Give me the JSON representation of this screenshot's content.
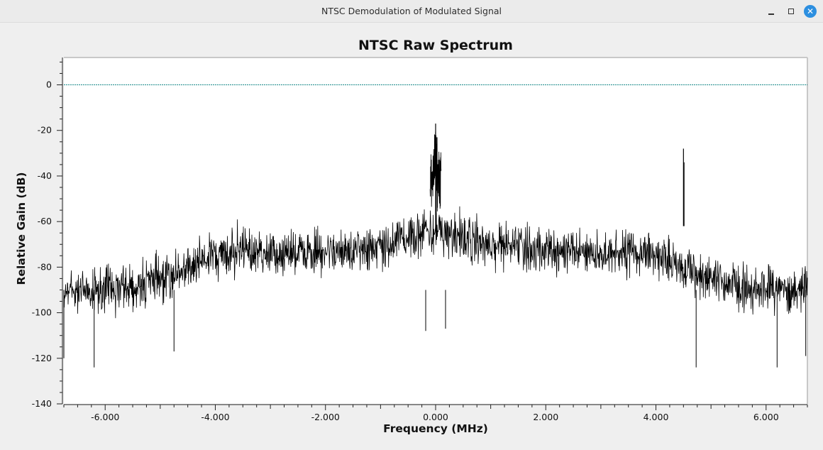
{
  "window": {
    "title": "NTSC Demodulation of Modulated Signal",
    "controls": {
      "minimize_icon": "minimize-icon",
      "maximize_icon": "maximize-icon",
      "close_icon": "close-icon",
      "close_glyph": "✕"
    }
  },
  "colors": {
    "trace": "#000000",
    "reference_line": "#1a8a8a",
    "plot_background": "#ffffff",
    "window_background": "#efefef",
    "close_button": "#2c8fe0"
  },
  "chart_data": {
    "type": "line",
    "title": "NTSC Raw Spectrum",
    "xlabel": "Frequency (MHz)",
    "ylabel": "Relative Gain (dB)",
    "xlim": [
      -6.75,
      6.75
    ],
    "ylim": [
      -140,
      12
    ],
    "x_ticks": [
      {
        "value": -6,
        "label": "-6.000"
      },
      {
        "value": -4,
        "label": "-4.000"
      },
      {
        "value": -2,
        "label": "-2.000"
      },
      {
        "value": 0,
        "label": "0.000"
      },
      {
        "value": 2,
        "label": "2.000"
      },
      {
        "value": 4,
        "label": "4.000"
      },
      {
        "value": 6,
        "label": "6.000"
      }
    ],
    "y_ticks": [
      {
        "value": 0,
        "label": "0"
      },
      {
        "value": -20,
        "label": "-20"
      },
      {
        "value": -40,
        "label": "-40"
      },
      {
        "value": -60,
        "label": "-60"
      },
      {
        "value": -80,
        "label": "-80"
      },
      {
        "value": -100,
        "label": "-100"
      },
      {
        "value": -120,
        "label": "-120"
      },
      {
        "value": -140,
        "label": "-140"
      }
    ],
    "reference_line": {
      "y": 0
    },
    "grid": false,
    "legend": "none",
    "series": [
      {
        "envelope": [
          {
            "x": -6.75,
            "upper": -77,
            "lower": -103
          },
          {
            "x": -6.0,
            "upper": -76,
            "lower": -104
          },
          {
            "x": -5.0,
            "upper": -72,
            "lower": -100
          },
          {
            "x": -4.2,
            "upper": -64,
            "lower": -90
          },
          {
            "x": -3.7,
            "upper": -57,
            "lower": -88
          },
          {
            "x": -3.0,
            "upper": -62,
            "lower": -87
          },
          {
            "x": -2.0,
            "upper": -60,
            "lower": -86
          },
          {
            "x": -1.0,
            "upper": -56,
            "lower": -84
          },
          {
            "x": -0.5,
            "upper": -52,
            "lower": -82
          },
          {
            "x": -0.2,
            "upper": -50,
            "lower": -80
          },
          {
            "x": 0.2,
            "upper": -50,
            "lower": -80
          },
          {
            "x": 0.5,
            "upper": -52,
            "lower": -82
          },
          {
            "x": 1.0,
            "upper": -56,
            "lower": -84
          },
          {
            "x": 2.0,
            "upper": -60,
            "lower": -86
          },
          {
            "x": 3.0,
            "upper": -62,
            "lower": -87
          },
          {
            "x": 3.7,
            "upper": -57,
            "lower": -88
          },
          {
            "x": 4.2,
            "upper": -64,
            "lower": -90
          },
          {
            "x": 5.0,
            "upper": -72,
            "lower": -100
          },
          {
            "x": 6.0,
            "upper": -76,
            "lower": -104
          },
          {
            "x": 6.75,
            "upper": -77,
            "lower": -103
          }
        ],
        "peaks": [
          {
            "x": 0.0,
            "y": -17
          },
          {
            "x": 0.01,
            "y": -30
          },
          {
            "x": 4.5,
            "y": -28
          },
          {
            "x": 4.51,
            "y": -34
          }
        ],
        "dips": [
          {
            "x": -6.75,
            "y": -120
          },
          {
            "x": -6.2,
            "y": -124
          },
          {
            "x": -4.75,
            "y": -117
          },
          {
            "x": -0.18,
            "y": -108
          },
          {
            "x": 0.18,
            "y": -107
          },
          {
            "x": 4.73,
            "y": -124
          },
          {
            "x": 6.2,
            "y": -124
          },
          {
            "x": 6.72,
            "y": -119
          }
        ]
      }
    ]
  }
}
